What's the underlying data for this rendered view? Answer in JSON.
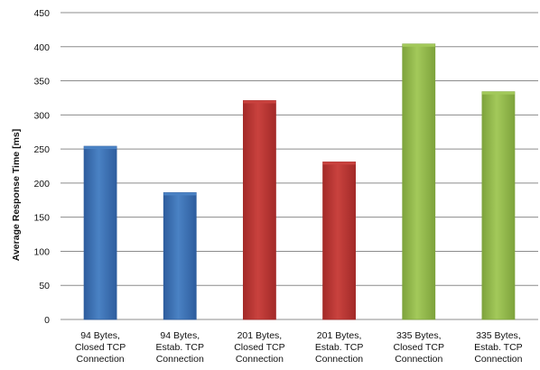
{
  "chart_data": {
    "type": "bar",
    "title": "",
    "xlabel": "",
    "ylabel": "Average Response Time [ms]",
    "ylim": [
      0,
      450
    ],
    "yticks": [
      0,
      50,
      100,
      150,
      200,
      250,
      300,
      350,
      400,
      450
    ],
    "grid": true,
    "legend": "none",
    "categories": [
      [
        "94 Bytes,",
        "Closed TCP",
        "Connection"
      ],
      [
        "94 Bytes,",
        "Estab. TCP",
        "Connection"
      ],
      [
        "201 Bytes,",
        "Closed TCP",
        "Connection"
      ],
      [
        "201 Bytes,",
        "Estab. TCP",
        "Connection"
      ],
      [
        "335 Bytes,",
        "Closed TCP",
        "Connection"
      ],
      [
        "335 Bytes,",
        "Estab. TCP",
        "Connection"
      ]
    ],
    "values": [
      254,
      186,
      321,
      231,
      404,
      334
    ],
    "bar_colors": [
      "#2e5d9e",
      "#2e5d9e",
      "#a32a28",
      "#a32a28",
      "#7ea33c",
      "#7ea33c"
    ],
    "bar_colors_light": [
      "#4a82c4",
      "#4a82c4",
      "#c9423e",
      "#c9423e",
      "#a3c95a",
      "#a3c95a"
    ]
  }
}
